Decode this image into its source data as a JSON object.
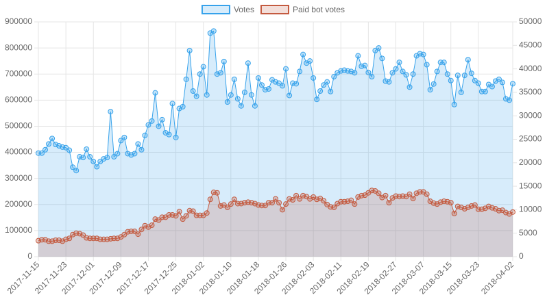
{
  "chart_data": {
    "type": "line",
    "categories": [
      "2017-11-15",
      null,
      null,
      null,
      null,
      null,
      null,
      null,
      "2017-11-23",
      null,
      null,
      null,
      null,
      null,
      null,
      null,
      "2017-12-01",
      null,
      null,
      null,
      null,
      null,
      null,
      null,
      "2017-12-09",
      null,
      null,
      null,
      null,
      null,
      null,
      null,
      "2017-12-17",
      null,
      null,
      null,
      null,
      null,
      null,
      null,
      "2017-12-25",
      null,
      null,
      null,
      null,
      null,
      null,
      null,
      "2018-01-02",
      null,
      null,
      null,
      null,
      null,
      null,
      null,
      "2018-01-10",
      null,
      null,
      null,
      null,
      null,
      null,
      null,
      "2018-01-18",
      null,
      null,
      null,
      null,
      null,
      null,
      null,
      "2018-01-26",
      null,
      null,
      null,
      null,
      null,
      null,
      null,
      "2018-02-03",
      null,
      null,
      null,
      null,
      null,
      null,
      null,
      "2018-02-11",
      null,
      null,
      null,
      null,
      null,
      null,
      null,
      "2018-02-19",
      null,
      null,
      null,
      null,
      null,
      null,
      null,
      "2018-02-27",
      null,
      null,
      null,
      null,
      null,
      null,
      null,
      "2018-03-07",
      null,
      null,
      null,
      null,
      null,
      null,
      null,
      "2018-03-15",
      null,
      null,
      null,
      null,
      null,
      null,
      null,
      "2018-03-23",
      null,
      null,
      null,
      null,
      null,
      null,
      null,
      null,
      null,
      "2018-04-02"
    ],
    "series": [
      {
        "name": "Votes",
        "color": "#36a2eb",
        "values": [
          397000,
          397000,
          410000,
          432000,
          453000,
          430000,
          425000,
          420000,
          418000,
          408000,
          343000,
          330000,
          383000,
          380000,
          412000,
          383000,
          365000,
          345000,
          365000,
          375000,
          380000,
          556000,
          383000,
          395000,
          445000,
          457000,
          395000,
          390000,
          395000,
          432000,
          410000,
          465000,
          505000,
          520000,
          628000,
          500000,
          525000,
          475000,
          468000,
          587000,
          457000,
          568000,
          575000,
          680000,
          790000,
          635000,
          615000,
          700000,
          728000,
          620000,
          857000,
          865000,
          700000,
          705000,
          748000,
          593000,
          620000,
          680000,
          605000,
          578000,
          630000,
          742000,
          620000,
          578000,
          685000,
          658000,
          640000,
          643000,
          678000,
          670000,
          665000,
          655000,
          720000,
          618000,
          665000,
          663000,
          710000,
          775000,
          742000,
          750000,
          685000,
          603000,
          635000,
          658000,
          670000,
          633000,
          690000,
          705000,
          712000,
          715000,
          712000,
          710000,
          705000,
          770000,
          730000,
          733000,
          706000,
          690000,
          790000,
          800000,
          760000,
          673000,
          670000,
          705000,
          720000,
          745000,
          710000,
          697000,
          650000,
          700000,
          770000,
          778000,
          775000,
          736000,
          640000,
          662000,
          710000,
          745000,
          745000,
          700000,
          675000,
          583000,
          695000,
          630000,
          695000,
          755000,
          703000,
          675000,
          665000,
          633000,
          633000,
          660000,
          652000,
          673000,
          680000,
          668000,
          605000,
          600000,
          663000
        ]
      },
      {
        "name": "Paid bot votes",
        "color": "#c45a3f",
        "axis": "y2",
        "values": [
          3400,
          3600,
          3600,
          3300,
          3300,
          3500,
          3500,
          3300,
          3700,
          3900,
          4700,
          5000,
          4900,
          4600,
          4000,
          3900,
          3900,
          3900,
          3700,
          3700,
          3700,
          3800,
          3900,
          3900,
          4200,
          4700,
          5300,
          5400,
          5400,
          4800,
          5800,
          6600,
          6300,
          6700,
          8000,
          7800,
          8400,
          8400,
          8900,
          8900,
          8700,
          9600,
          8000,
          8700,
          9800,
          9700,
          8800,
          8800,
          8800,
          9300,
          12200,
          13700,
          13600,
          10800,
          11000,
          10500,
          11200,
          12200,
          11300,
          11300,
          11500,
          11600,
          11500,
          11300,
          11000,
          10900,
          10900,
          11500,
          11500,
          12300,
          11500,
          10000,
          11200,
          12300,
          12100,
          13000,
          12300,
          13000,
          12800,
          12300,
          12700,
          12200,
          12400,
          11900,
          11100,
          10600,
          10500,
          11300,
          11700,
          11700,
          11800,
          12000,
          11200,
          12700,
          13000,
          13100,
          13600,
          14100,
          14000,
          13500,
          12600,
          13000,
          11500,
          12500,
          12900,
          12800,
          12900,
          12800,
          13300,
          12400,
          13500,
          13800,
          13800,
          13300,
          11800,
          11400,
          11200,
          11600,
          11800,
          11700,
          11500,
          9200,
          10700,
          10500,
          10200,
          10500,
          10800,
          11000,
          10100,
          10100,
          10300,
          10700,
          10400,
          10200,
          9800,
          9900,
          9400,
          9100,
          9500
        ]
      }
    ],
    "ylim": [
      0,
      900000
    ],
    "yticks": [
      0,
      100000,
      200000,
      300000,
      400000,
      500000,
      600000,
      700000,
      800000,
      900000
    ],
    "y2lim": [
      0,
      50000
    ],
    "y2ticks": [
      0,
      5000,
      10000,
      15000,
      20000,
      25000,
      30000,
      35000,
      40000,
      45000,
      50000
    ],
    "grid": true,
    "legend": "top"
  }
}
